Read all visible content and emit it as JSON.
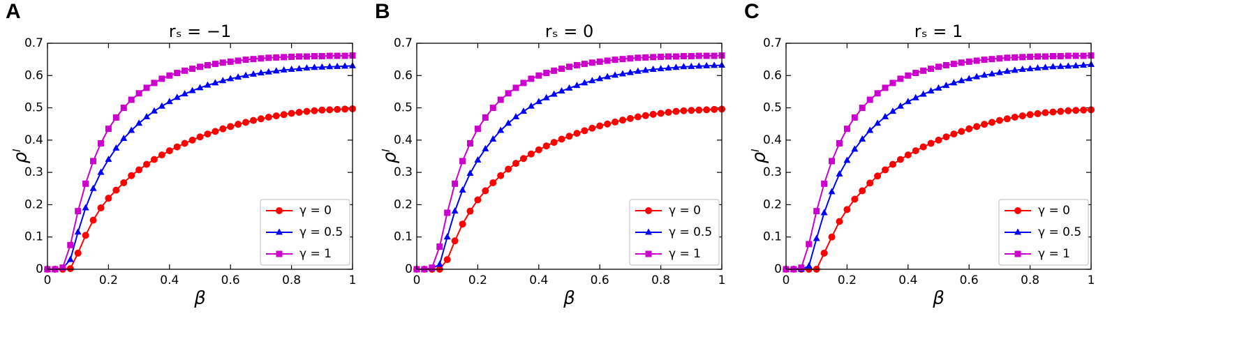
{
  "chart_data": [
    {
      "type": "line",
      "panel_label": "A",
      "title": "rₛ = −1",
      "x_label": "β",
      "y_label": "ρˡ",
      "xlim": [
        0,
        1
      ],
      "ylim": [
        0,
        0.7
      ],
      "xticks": [
        0,
        0.2,
        0.4,
        0.6,
        0.8,
        1
      ],
      "yticks": [
        0,
        0.1,
        0.2,
        0.3,
        0.4,
        0.5,
        0.6,
        0.7
      ],
      "legend": "lower right",
      "x": [
        0,
        0.025,
        0.05,
        0.075,
        0.1,
        0.125,
        0.15,
        0.175,
        0.2,
        0.225,
        0.25,
        0.275,
        0.3,
        0.325,
        0.35,
        0.375,
        0.4,
        0.425,
        0.45,
        0.475,
        0.5,
        0.525,
        0.55,
        0.575,
        0.6,
        0.625,
        0.65,
        0.675,
        0.7,
        0.725,
        0.75,
        0.775,
        0.8,
        0.825,
        0.85,
        0.875,
        0.9,
        0.925,
        0.95,
        0.975,
        1
      ],
      "series": [
        {
          "name": "γ = 0",
          "color": "#ff0000",
          "marker": "circle",
          "values": [
            0,
            0,
            0,
            0.002,
            0.05,
            0.105,
            0.152,
            0.19,
            0.22,
            0.245,
            0.268,
            0.29,
            0.308,
            0.325,
            0.34,
            0.354,
            0.367,
            0.379,
            0.39,
            0.4,
            0.41,
            0.419,
            0.427,
            0.435,
            0.442,
            0.449,
            0.455,
            0.461,
            0.466,
            0.471,
            0.475,
            0.479,
            0.483,
            0.486,
            0.489,
            0.491,
            0.493,
            0.494,
            0.495,
            0.496,
            0.497
          ]
        },
        {
          "name": "γ = 0.5",
          "color": "#0000ff",
          "marker": "triangle",
          "values": [
            0,
            0,
            0.003,
            0.03,
            0.115,
            0.19,
            0.25,
            0.3,
            0.34,
            0.375,
            0.405,
            0.43,
            0.452,
            0.472,
            0.49,
            0.505,
            0.519,
            0.532,
            0.543,
            0.553,
            0.562,
            0.57,
            0.577,
            0.584,
            0.59,
            0.595,
            0.6,
            0.604,
            0.608,
            0.611,
            0.614,
            0.617,
            0.619,
            0.621,
            0.623,
            0.625,
            0.626,
            0.627,
            0.628,
            0.629,
            0.63
          ]
        },
        {
          "name": "γ = 1",
          "color": "#cc00cc",
          "marker": "square",
          "values": [
            0,
            0,
            0.005,
            0.075,
            0.18,
            0.265,
            0.335,
            0.39,
            0.435,
            0.47,
            0.5,
            0.525,
            0.545,
            0.562,
            0.577,
            0.59,
            0.6,
            0.608,
            0.615,
            0.621,
            0.627,
            0.632,
            0.636,
            0.64,
            0.643,
            0.646,
            0.649,
            0.651,
            0.653,
            0.655,
            0.656,
            0.657,
            0.658,
            0.659,
            0.659,
            0.66,
            0.66,
            0.661,
            0.661,
            0.661,
            0.662
          ]
        }
      ]
    },
    {
      "type": "line",
      "panel_label": "B",
      "title": "rₛ = 0",
      "x_label": "β",
      "y_label": "ρˡ",
      "xlim": [
        0,
        1
      ],
      "ylim": [
        0,
        0.7
      ],
      "xticks": [
        0,
        0.2,
        0.4,
        0.6,
        0.8,
        1
      ],
      "yticks": [
        0,
        0.1,
        0.2,
        0.3,
        0.4,
        0.5,
        0.6,
        0.7
      ],
      "legend": "lower right",
      "x": [
        0,
        0.025,
        0.05,
        0.075,
        0.1,
        0.125,
        0.15,
        0.175,
        0.2,
        0.225,
        0.25,
        0.275,
        0.3,
        0.325,
        0.35,
        0.375,
        0.4,
        0.425,
        0.45,
        0.475,
        0.5,
        0.525,
        0.55,
        0.575,
        0.6,
        0.625,
        0.65,
        0.675,
        0.7,
        0.725,
        0.75,
        0.775,
        0.8,
        0.825,
        0.85,
        0.875,
        0.9,
        0.925,
        0.95,
        0.975,
        1
      ],
      "series": [
        {
          "name": "γ = 0",
          "color": "#ff0000",
          "marker": "circle",
          "values": [
            0,
            0,
            0,
            0,
            0.03,
            0.088,
            0.14,
            0.18,
            0.215,
            0.243,
            0.268,
            0.29,
            0.31,
            0.328,
            0.343,
            0.357,
            0.37,
            0.382,
            0.393,
            0.403,
            0.412,
            0.421,
            0.429,
            0.437,
            0.444,
            0.45,
            0.456,
            0.462,
            0.467,
            0.472,
            0.476,
            0.48,
            0.483,
            0.486,
            0.489,
            0.491,
            0.492,
            0.493,
            0.494,
            0.495,
            0.496
          ]
        },
        {
          "name": "γ = 0.5",
          "color": "#0000ff",
          "marker": "triangle",
          "values": [
            0,
            0,
            0.002,
            0.015,
            0.1,
            0.18,
            0.245,
            0.297,
            0.338,
            0.373,
            0.403,
            0.43,
            0.452,
            0.472,
            0.489,
            0.505,
            0.519,
            0.531,
            0.542,
            0.552,
            0.561,
            0.569,
            0.577,
            0.584,
            0.59,
            0.596,
            0.601,
            0.605,
            0.609,
            0.613,
            0.616,
            0.619,
            0.621,
            0.623,
            0.625,
            0.627,
            0.628,
            0.629,
            0.63,
            0.631,
            0.632
          ]
        },
        {
          "name": "γ = 1",
          "color": "#cc00cc",
          "marker": "square",
          "values": [
            0,
            0,
            0.005,
            0.07,
            0.175,
            0.265,
            0.335,
            0.39,
            0.435,
            0.47,
            0.5,
            0.525,
            0.545,
            0.562,
            0.577,
            0.59,
            0.6,
            0.608,
            0.615,
            0.621,
            0.627,
            0.632,
            0.636,
            0.64,
            0.643,
            0.646,
            0.649,
            0.651,
            0.653,
            0.655,
            0.656,
            0.657,
            0.658,
            0.659,
            0.659,
            0.66,
            0.66,
            0.661,
            0.661,
            0.661,
            0.662
          ]
        }
      ]
    },
    {
      "type": "line",
      "panel_label": "C",
      "title": "rₛ = 1",
      "x_label": "β",
      "y_label": "ρˡ",
      "xlim": [
        0,
        1
      ],
      "ylim": [
        0,
        0.7
      ],
      "xticks": [
        0,
        0.2,
        0.4,
        0.6,
        0.8,
        1
      ],
      "yticks": [
        0,
        0.1,
        0.2,
        0.3,
        0.4,
        0.5,
        0.6,
        0.7
      ],
      "legend": "lower right",
      "x": [
        0,
        0.025,
        0.05,
        0.075,
        0.1,
        0.125,
        0.15,
        0.175,
        0.2,
        0.225,
        0.25,
        0.275,
        0.3,
        0.325,
        0.35,
        0.375,
        0.4,
        0.425,
        0.45,
        0.475,
        0.5,
        0.525,
        0.55,
        0.575,
        0.6,
        0.625,
        0.65,
        0.675,
        0.7,
        0.725,
        0.75,
        0.775,
        0.8,
        0.825,
        0.85,
        0.875,
        0.9,
        0.925,
        0.95,
        0.975,
        1
      ],
      "series": [
        {
          "name": "γ = 0",
          "color": "#ff0000",
          "marker": "circle",
          "values": [
            0,
            0,
            0,
            0,
            0,
            0.05,
            0.1,
            0.148,
            0.185,
            0.217,
            0.243,
            0.267,
            0.289,
            0.308,
            0.325,
            0.34,
            0.354,
            0.367,
            0.379,
            0.39,
            0.4,
            0.41,
            0.419,
            0.427,
            0.435,
            0.442,
            0.449,
            0.455,
            0.461,
            0.466,
            0.471,
            0.475,
            0.479,
            0.482,
            0.485,
            0.487,
            0.489,
            0.491,
            0.492,
            0.493,
            0.494
          ]
        },
        {
          "name": "γ = 0.5",
          "color": "#0000ff",
          "marker": "triangle",
          "values": [
            0,
            0,
            0,
            0.01,
            0.095,
            0.175,
            0.24,
            0.295,
            0.337,
            0.372,
            0.403,
            0.43,
            0.452,
            0.472,
            0.489,
            0.505,
            0.519,
            0.531,
            0.542,
            0.552,
            0.561,
            0.569,
            0.577,
            0.584,
            0.59,
            0.596,
            0.601,
            0.605,
            0.609,
            0.613,
            0.616,
            0.619,
            0.621,
            0.623,
            0.625,
            0.627,
            0.628,
            0.629,
            0.63,
            0.632,
            0.634
          ]
        },
        {
          "name": "γ = 1",
          "color": "#cc00cc",
          "marker": "square",
          "values": [
            0,
            0,
            0.005,
            0.078,
            0.18,
            0.265,
            0.335,
            0.39,
            0.435,
            0.47,
            0.5,
            0.525,
            0.545,
            0.562,
            0.577,
            0.59,
            0.6,
            0.608,
            0.615,
            0.621,
            0.627,
            0.632,
            0.636,
            0.64,
            0.643,
            0.646,
            0.649,
            0.651,
            0.653,
            0.655,
            0.656,
            0.657,
            0.658,
            0.659,
            0.659,
            0.66,
            0.66,
            0.661,
            0.661,
            0.661,
            0.662
          ]
        }
      ]
    }
  ]
}
